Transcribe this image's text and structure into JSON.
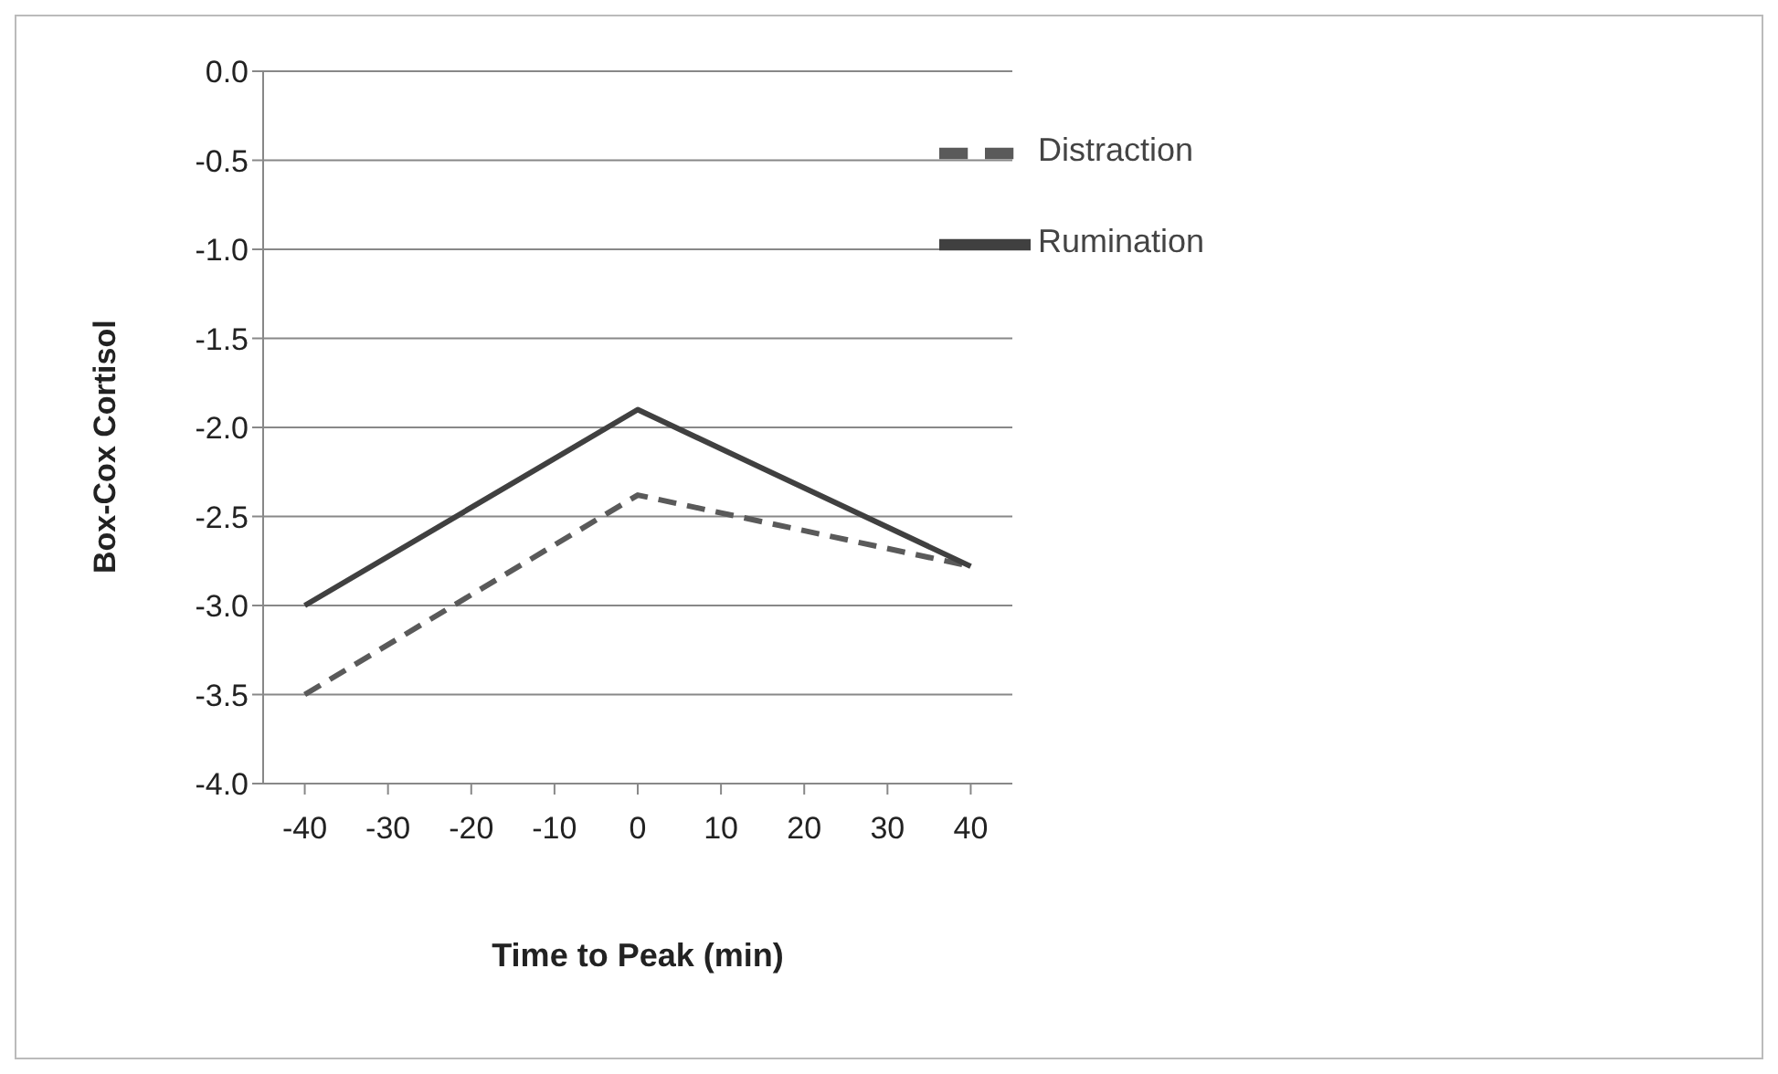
{
  "chart_data": {
    "type": "line",
    "xlabel": "Time to Peak (min)",
    "ylabel": "Box-Cox Cortisol",
    "xlim": [
      -45,
      45
    ],
    "xticks": [
      -40,
      -30,
      -20,
      -10,
      0,
      10,
      20,
      30,
      40
    ],
    "ylim": [
      -4,
      0
    ],
    "yticks": [
      {
        "value": 0,
        "label": "0.0"
      },
      {
        "value": -0.5,
        "label": "-0.5"
      },
      {
        "value": -1,
        "label": "-1.0"
      },
      {
        "value": -1.5,
        "label": "-1.5"
      },
      {
        "value": -2,
        "label": "-2.0"
      },
      {
        "value": -2.5,
        "label": "-2.5"
      },
      {
        "value": -3,
        "label": "-3.0"
      },
      {
        "value": -3.5,
        "label": "-3.5"
      },
      {
        "value": -4,
        "label": "-4.0"
      }
    ],
    "grid": "y",
    "legend": "top right",
    "series": [
      {
        "name": "Distraction",
        "color": "#5a5a5a",
        "line_style": "dashed",
        "x": [
          -40,
          0,
          40
        ],
        "values": [
          -3.5,
          -2.38,
          -2.78
        ]
      },
      {
        "name": "Rumination",
        "color": "#404040",
        "line_style": "solid",
        "x": [
          -40,
          0,
          40
        ],
        "values": [
          -3.0,
          -1.9,
          -2.78
        ]
      }
    ]
  }
}
